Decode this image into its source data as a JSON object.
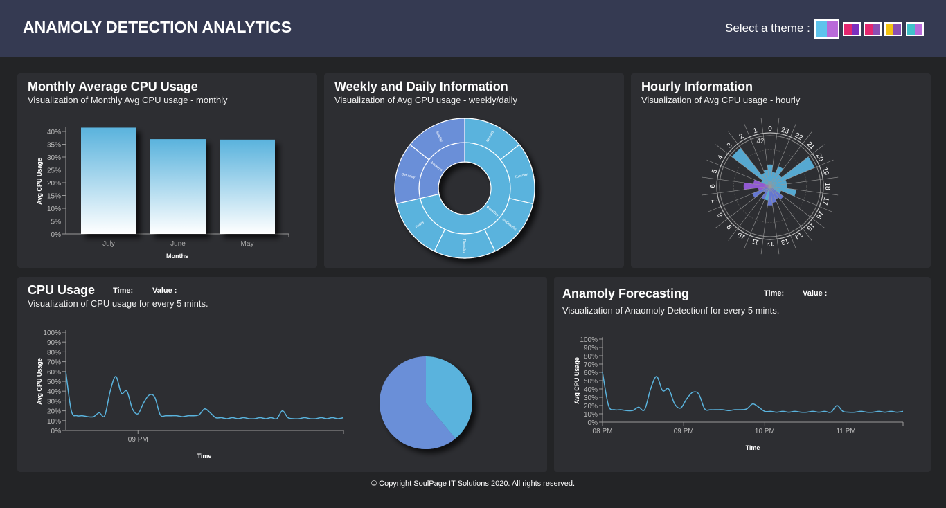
{
  "header": {
    "title": "ANAMOLY DETECTION ANALYTICS",
    "theme_label": "Select a theme :",
    "themes": [
      {
        "name": "theme-blue-purple",
        "colors": [
          "#5ec3ec",
          "#b96ad9"
        ],
        "selected": true
      },
      {
        "name": "theme-pink-purple",
        "colors": [
          "#e3266f",
          "#7b2fbe"
        ],
        "selected": false
      },
      {
        "name": "theme-pink-violet",
        "colors": [
          "#e3266f",
          "#8a4fb3"
        ],
        "selected": false
      },
      {
        "name": "theme-yellow-violet",
        "colors": [
          "#f3c311",
          "#8a4fb3"
        ],
        "selected": false
      },
      {
        "name": "theme-cyan-violet",
        "colors": [
          "#3fc1c9",
          "#b96ad9"
        ],
        "selected": false
      }
    ]
  },
  "cards": {
    "monthly": {
      "title": "Monthly Average CPU Usage",
      "subtitle": "Visualization of Monthly Avg CPU usage - monthly"
    },
    "weekly": {
      "title": "Weekly and Daily Information",
      "subtitle": "Visualization of Avg CPU usage - weekly/daily"
    },
    "hourly": {
      "title": "Hourly Information",
      "subtitle": "Visualization of Avg CPU usage - hourly"
    },
    "cpu": {
      "title": "CPU Usage",
      "subtitle": "Visualization of CPU usage for every 5 mints.",
      "time_label": "Time:",
      "value_label": "Value :"
    },
    "forecast": {
      "title": "Anamoly Forecasting",
      "subtitle": "Visualization of Anaomoly Detectionf for every 5 mints.",
      "time_label": "Time:",
      "value_label": "Value :"
    }
  },
  "chart_data": [
    {
      "id": "monthly",
      "type": "bar",
      "categories": [
        "July",
        "June",
        "May"
      ],
      "values": [
        41.5,
        37,
        36.8
      ],
      "yticks": [
        "0%",
        "5%",
        "10%",
        "15%",
        "20%",
        "25%",
        "30%",
        "35%",
        "40%"
      ],
      "ylim": [
        0,
        40
      ],
      "xlabel": "Months",
      "ylabel": "Avg CPU Usage",
      "color_top": "#5ab3dd",
      "color_bottom": "#ffffff"
    },
    {
      "id": "weekly",
      "type": "sunburst",
      "inner": [
        {
          "label": "WeekDay",
          "value": 5,
          "color": "#5ab3dd"
        },
        {
          "label": "Weekend",
          "value": 2,
          "color": "#6a8fd8"
        }
      ],
      "outer": [
        {
          "label": "Monday",
          "value": 1,
          "color": "#5ab3dd"
        },
        {
          "label": "Tuesday",
          "value": 1,
          "color": "#5ab3dd"
        },
        {
          "label": "Wednesday",
          "value": 1,
          "color": "#5ab3dd"
        },
        {
          "label": "Thursday",
          "value": 1,
          "color": "#5ab3dd"
        },
        {
          "label": "Friday",
          "value": 1,
          "color": "#5ab3dd"
        },
        {
          "label": "Saturday",
          "value": 1,
          "color": "#6a8fd8"
        },
        {
          "label": "Sunday",
          "value": 1,
          "color": "#6a8fd8"
        }
      ]
    },
    {
      "id": "hourly",
      "type": "radial-bar",
      "hours": [
        "0",
        "1",
        "2",
        "3",
        "4",
        "5",
        "6",
        "7",
        "8",
        "9",
        "10",
        "11",
        "12",
        "13",
        "14",
        "15",
        "16",
        "17",
        "18",
        "19",
        "20",
        "21",
        "22",
        "23"
      ],
      "values": [
        18,
        14,
        12,
        40,
        8,
        14,
        22,
        10,
        16,
        7,
        12,
        12,
        16,
        14,
        12,
        14,
        10,
        22,
        14,
        14,
        40,
        12,
        18,
        12
      ],
      "colors": [
        "#5ab3dd",
        "#5ab3dd",
        "#5ab3dd",
        "#5ab3dd",
        "#5ab3dd",
        "#9a5de0",
        "#9a5de0",
        "#9a5de0",
        "#6a7fe0",
        "#6a7fe0",
        "#6a7fe0",
        "#5ab3dd",
        "#6a7fe0",
        "#6a7fe0",
        "#6a7fe0",
        "#6a7fe0",
        "#5ab3dd",
        "#5ab3dd",
        "#5ab3dd",
        "#5ab3dd",
        "#5ab3dd",
        "#5ab3dd",
        "#5ab3dd",
        "#5ab3dd"
      ],
      "ring_label": "42",
      "max": 42
    },
    {
      "id": "cpu",
      "type": "line",
      "x": [
        0,
        2,
        4,
        6,
        8,
        10,
        12,
        14,
        16,
        18,
        20,
        22,
        24,
        26,
        28,
        30,
        32,
        34,
        36,
        38,
        40,
        42,
        44,
        46,
        48,
        50,
        52,
        54,
        56,
        58,
        60,
        62,
        64,
        66,
        68,
        70,
        72,
        74,
        76,
        78,
        80,
        82,
        84,
        86,
        88,
        90,
        92,
        94,
        96,
        98,
        100
      ],
      "y": [
        60,
        20,
        15,
        15,
        14,
        14,
        18,
        15,
        40,
        55,
        38,
        40,
        22,
        17,
        28,
        36,
        34,
        16,
        15,
        15,
        15,
        14,
        15,
        15,
        16,
        22,
        18,
        13,
        13,
        12,
        13,
        12,
        13,
        12,
        12,
        13,
        12,
        13,
        12,
        20,
        13,
        12,
        12,
        13,
        12,
        12,
        13,
        12,
        13,
        12,
        13
      ],
      "x_tick_labels": [
        "09 PM"
      ],
      "x_tick_positions": [
        26
      ],
      "yticks": [
        "0%",
        "10%",
        "20%",
        "30%",
        "40%",
        "50%",
        "60%",
        "70%",
        "80%",
        "90%",
        "100%"
      ],
      "ylim": [
        0,
        100
      ],
      "xlim": [
        0,
        100
      ],
      "xlabel": "Time",
      "ylabel": "Avg CPU Usage",
      "color": "#5ab3dd"
    },
    {
      "id": "cpu-pie",
      "type": "pie",
      "values": [
        39,
        61
      ],
      "colors": [
        "#5ab3dd",
        "#6a8fd8"
      ]
    },
    {
      "id": "forecast",
      "type": "line",
      "x": [
        0,
        2,
        4,
        6,
        8,
        10,
        12,
        14,
        16,
        18,
        20,
        22,
        24,
        26,
        28,
        30,
        32,
        34,
        36,
        38,
        40,
        42,
        44,
        46,
        48,
        50,
        52,
        54,
        56,
        58,
        60,
        62,
        64,
        66,
        68,
        70,
        72,
        74,
        76,
        78,
        80,
        82,
        84,
        86,
        88,
        90,
        92,
        94,
        96,
        98,
        100
      ],
      "y": [
        60,
        20,
        15,
        15,
        14,
        14,
        18,
        15,
        40,
        55,
        38,
        40,
        22,
        17,
        28,
        36,
        34,
        16,
        15,
        15,
        15,
        14,
        15,
        15,
        16,
        22,
        18,
        13,
        13,
        12,
        13,
        12,
        13,
        12,
        12,
        13,
        12,
        13,
        12,
        20,
        13,
        12,
        12,
        13,
        12,
        12,
        13,
        12,
        13,
        12,
        13
      ],
      "x_tick_labels": [
        "08 PM",
        "09 PM",
        "10 PM",
        "11 PM"
      ],
      "x_tick_positions": [
        0,
        27,
        54,
        81
      ],
      "yticks": [
        "0%",
        "10%",
        "20%",
        "30%",
        "40%",
        "50%",
        "60%",
        "70%",
        "80%",
        "90%",
        "100%"
      ],
      "ylim": [
        0,
        100
      ],
      "xlim": [
        0,
        100
      ],
      "xlabel": "Time",
      "ylabel": "Avg CPU Usage",
      "color": "#5ab3dd"
    }
  ],
  "footer": {
    "text": "© Copyright SoulPage IT Solutions 2020. All rights reserved."
  }
}
